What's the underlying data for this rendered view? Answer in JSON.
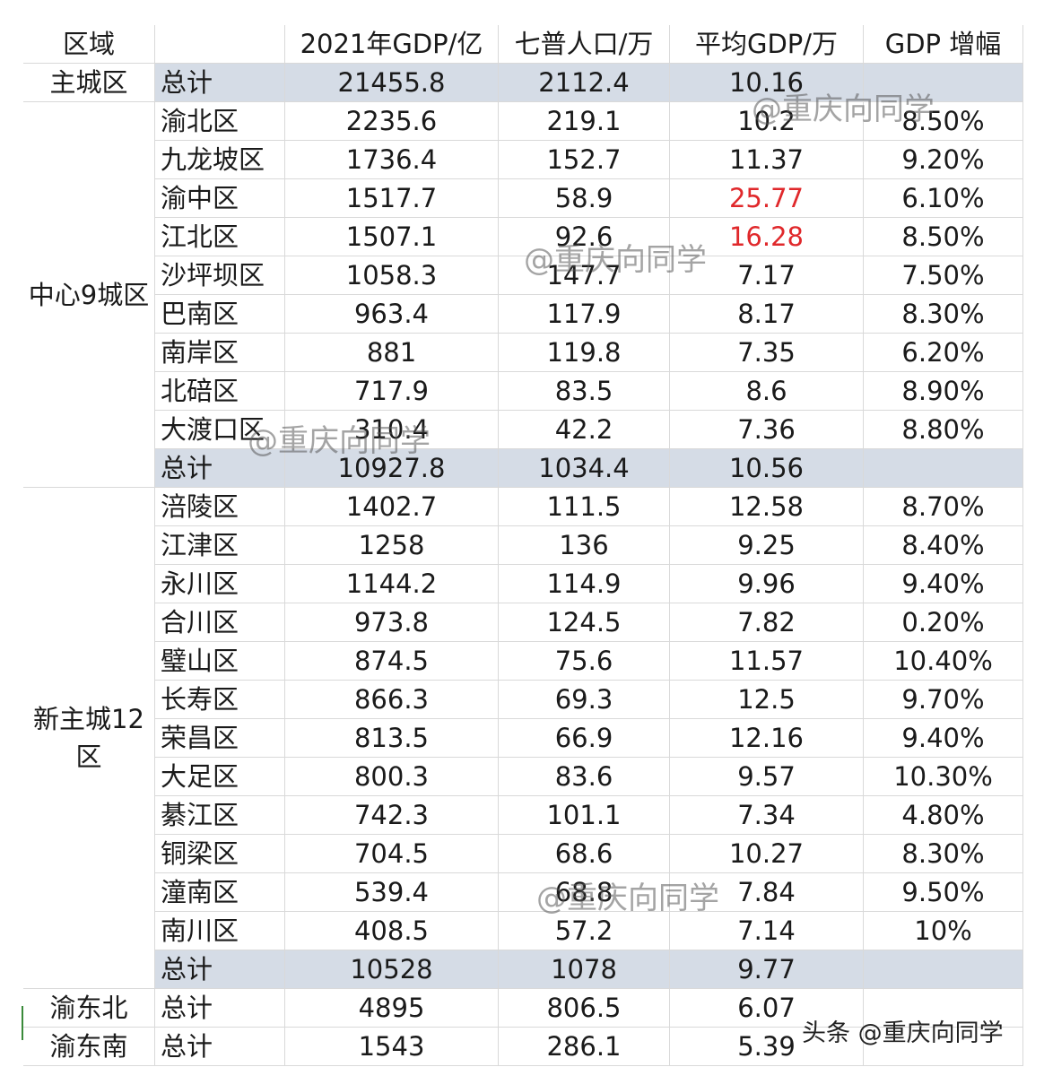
{
  "header": [
    "区域",
    "",
    "2021年GDP/亿",
    "七普人口/万",
    "平均GDP/万",
    "GDP 增幅"
  ],
  "main_city": {
    "region": "主城区",
    "label": "总计",
    "gdp": "21455.8",
    "pop": "2112.4",
    "avg": "10.16"
  },
  "groups": [
    {
      "region": "中心9城区",
      "rows": [
        {
          "name": "渝北区",
          "gdp": "2235.6",
          "pop": "219.1",
          "avg": "10.2",
          "growth": "8.50%"
        },
        {
          "name": "九龙坡区",
          "gdp": "1736.4",
          "pop": "152.7",
          "avg": "11.37",
          "growth": "9.20%"
        },
        {
          "name": "渝中区",
          "gdp": "1517.7",
          "pop": "58.9",
          "avg": "25.77",
          "growth": "6.10%",
          "highlight": true
        },
        {
          "name": "江北区",
          "gdp": "1507.1",
          "pop": "92.6",
          "avg": "16.28",
          "growth": "8.50%",
          "highlight": true
        },
        {
          "name": "沙坪坝区",
          "gdp": "1058.3",
          "pop": "147.7",
          "avg": "7.17",
          "growth": "7.50%"
        },
        {
          "name": "巴南区",
          "gdp": "963.4",
          "pop": "117.9",
          "avg": "8.17",
          "growth": "8.30%"
        },
        {
          "name": "南岸区",
          "gdp": "881",
          "pop": "119.8",
          "avg": "7.35",
          "growth": "6.20%"
        },
        {
          "name": "北碚区",
          "gdp": "717.9",
          "pop": "83.5",
          "avg": "8.6",
          "growth": "8.90%"
        },
        {
          "name": "大渡口区",
          "gdp": "310.4",
          "pop": "42.2",
          "avg": "7.36",
          "growth": "8.80%"
        }
      ],
      "total": {
        "label": "总计",
        "gdp": "10927.8",
        "pop": "1034.4",
        "avg": "10.56"
      }
    },
    {
      "region": "新主城12区",
      "rows": [
        {
          "name": "涪陵区",
          "gdp": "1402.7",
          "pop": "111.5",
          "avg": "12.58",
          "growth": "8.70%"
        },
        {
          "name": "江津区",
          "gdp": "1258",
          "pop": "136",
          "avg": "9.25",
          "growth": "8.40%"
        },
        {
          "name": "永川区",
          "gdp": "1144.2",
          "pop": "114.9",
          "avg": "9.96",
          "growth": "9.40%"
        },
        {
          "name": "合川区",
          "gdp": "973.8",
          "pop": "124.5",
          "avg": "7.82",
          "growth": "0.20%"
        },
        {
          "name": "璧山区",
          "gdp": "874.5",
          "pop": "75.6",
          "avg": "11.57",
          "growth": "10.40%"
        },
        {
          "name": "长寿区",
          "gdp": "866.3",
          "pop": "69.3",
          "avg": "12.5",
          "growth": "9.70%"
        },
        {
          "name": "荣昌区",
          "gdp": "813.5",
          "pop": "66.9",
          "avg": "12.16",
          "growth": "9.40%"
        },
        {
          "name": "大足区",
          "gdp": "800.3",
          "pop": "83.6",
          "avg": "9.57",
          "growth": "10.30%"
        },
        {
          "name": "綦江区",
          "gdp": "742.3",
          "pop": "101.1",
          "avg": "7.34",
          "growth": "4.80%"
        },
        {
          "name": "铜梁区",
          "gdp": "704.5",
          "pop": "68.6",
          "avg": "10.27",
          "growth": "8.30%"
        },
        {
          "name": "潼南区",
          "gdp": "539.4",
          "pop": "68.8",
          "avg": "7.84",
          "growth": "9.50%"
        },
        {
          "name": "南川区",
          "gdp": "408.5",
          "pop": "57.2",
          "avg": "7.14",
          "growth": "10%"
        }
      ],
      "total": {
        "label": "总计",
        "gdp": "10528",
        "pop": "1078",
        "avg": "9.77"
      }
    }
  ],
  "bottom_rows": [
    {
      "region": "渝东北",
      "label": "总计",
      "gdp": "4895",
      "pop": "806.5",
      "avg": "6.07"
    },
    {
      "region": "渝东南",
      "label": "总计",
      "gdp": "1543",
      "pop": "286.1",
      "avg": "5.39"
    }
  ],
  "watermarks": [
    "@重庆向同学",
    "@重庆向同学",
    "@重庆向同学",
    "@重庆向同学",
    "头条 @重庆向同学"
  ],
  "colors": {
    "total_row_bg": "#d5dce6",
    "highlight_text": "#e0282b"
  }
}
